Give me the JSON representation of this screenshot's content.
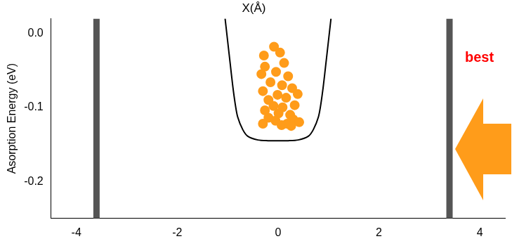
{
  "chart_data": {
    "type": "scatter",
    "title": "X(Å)",
    "y_label": "Asorption Energy (eV)",
    "xlim": [
      -4.5,
      4.5
    ],
    "xticks": [
      -4,
      -2,
      0,
      2,
      4
    ],
    "ylim": [
      -0.25,
      0.02
    ],
    "yticks": [
      {
        "value": -0.2,
        "label": "-0.2"
      },
      {
        "value": -0.1,
        "label": "-0.1"
      },
      {
        "value": 0,
        "label": "0.0"
      }
    ],
    "grid": false,
    "annotations": [
      {
        "text": "best",
        "color": "#ff0000"
      }
    ],
    "series": [
      {
        "type": "line",
        "color": "#555555",
        "line_style": "solid",
        "x": [
          -3.6,
          -3.6
        ],
        "values": [
          -0.25,
          0.02
        ]
      },
      {
        "type": "line",
        "color": "#555555",
        "line_style": "solid",
        "x": [
          3.4,
          3.4
        ],
        "values": [
          -0.25,
          0.02
        ]
      },
      {
        "type": "line",
        "color": "#000000",
        "line_style": "solid",
        "x": [
          -1.05,
          -1.0,
          -0.95,
          -0.9,
          -0.85,
          -0.8,
          -0.7,
          -0.6,
          -0.4,
          -0.2,
          0,
          0.2,
          0.4,
          0.6,
          0.7,
          0.8,
          0.85,
          0.9,
          0.95,
          1.0,
          1.05
        ],
        "values": [
          0.02,
          -0.01,
          -0.04,
          -0.07,
          -0.095,
          -0.113,
          -0.13,
          -0.139,
          -0.144,
          -0.145,
          -0.145,
          -0.145,
          -0.144,
          -0.139,
          -0.13,
          -0.113,
          -0.095,
          -0.07,
          -0.04,
          -0.01,
          0.02
        ]
      },
      {
        "type": "scatter",
        "color": "#ff9c1a",
        "marker": "circle",
        "x": [
          -0.08,
          -0.28,
          0.04,
          -0.26,
          0.12,
          -0.33,
          -0.04,
          0.2,
          -0.15,
          0.08,
          -0.3,
          0.28,
          -0.01,
          -0.19,
          0.16,
          0.39,
          -0.09,
          0.09,
          0.33,
          -0.26,
          0.01,
          0.24,
          -0.19,
          0.3,
          -0.05,
          0.18,
          0.42,
          -0.3,
          0.07,
          0.26
        ],
        "values": [
          -0.018,
          -0.03,
          -0.026,
          -0.045,
          -0.04,
          -0.055,
          -0.052,
          -0.058,
          -0.066,
          -0.07,
          -0.078,
          -0.074,
          -0.083,
          -0.09,
          -0.087,
          -0.082,
          -0.098,
          -0.1,
          -0.097,
          -0.104,
          -0.108,
          -0.11,
          -0.114,
          -0.116,
          -0.118,
          -0.122,
          -0.12,
          -0.122,
          -0.124,
          -0.125
        ]
      }
    ]
  }
}
